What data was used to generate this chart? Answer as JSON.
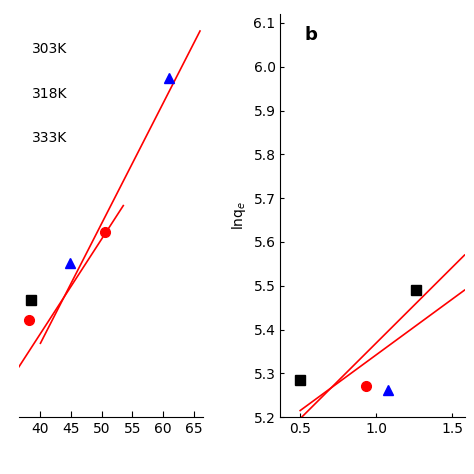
{
  "left": {
    "xlim": [
      36.5,
      66.5
    ],
    "ylim": [
      5.6,
      6.2
    ],
    "xticks": [
      40,
      45,
      50,
      55,
      60,
      65
    ],
    "legend_texts": [
      "303K",
      "318K",
      "333K"
    ],
    "series": [
      {
        "color": "black",
        "marker": "s",
        "x": [
          38.5
        ],
        "y": [
          5.775
        ]
      },
      {
        "color": "red",
        "marker": "o",
        "x": [
          38.2,
          50.5
        ],
        "y": [
          5.745,
          5.875
        ]
      },
      {
        "color": "blue",
        "marker": "^",
        "x": [
          44.8,
          61.0
        ],
        "y": [
          5.83,
          6.105
        ]
      }
    ],
    "lines": [
      {
        "color": "red",
        "x": [
          36.5,
          53.5
        ],
        "y": [
          5.675,
          5.915
        ]
      },
      {
        "color": "red",
        "x": [
          40.0,
          66.0
        ],
        "y": [
          5.71,
          6.175
        ]
      }
    ]
  },
  "right": {
    "xlim": [
      0.37,
      1.58
    ],
    "ylim": [
      5.2,
      6.12
    ],
    "xticks": [
      0.5,
      1.0,
      1.5
    ],
    "yticks": [
      5.2,
      5.3,
      5.4,
      5.5,
      5.6,
      5.7,
      5.8,
      5.9,
      6.0,
      6.1
    ],
    "label": "b",
    "ylabel": "lnq$_e$",
    "series": [
      {
        "color": "black",
        "marker": "s",
        "x": [
          0.5,
          1.26
        ],
        "y": [
          5.285,
          5.49
        ]
      },
      {
        "color": "red",
        "marker": "o",
        "x": [
          0.93
        ],
        "y": [
          5.272
        ]
      },
      {
        "color": "blue",
        "marker": "^",
        "x": [
          1.08
        ],
        "y": [
          5.262
        ]
      }
    ],
    "lines": [
      {
        "color": "red",
        "x": [
          0.38,
          1.58
        ],
        "y": [
          5.155,
          5.57
        ]
      },
      {
        "color": "red",
        "x": [
          0.5,
          1.58
        ],
        "y": [
          5.215,
          5.49
        ]
      }
    ]
  },
  "bg": "#ffffff",
  "ms": 7,
  "fs": 10,
  "tfs": 10,
  "lw": 1.2
}
